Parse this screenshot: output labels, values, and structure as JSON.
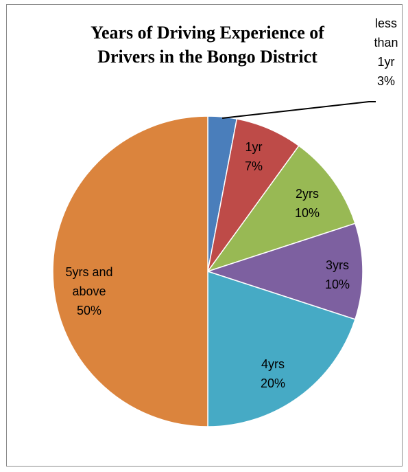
{
  "chart_data": {
    "type": "pie",
    "title_lines": [
      "Years of Driving Experience of",
      "Drivers in the Bongo District"
    ],
    "slices": [
      {
        "label_lines": [
          "less",
          "than",
          "1yr"
        ],
        "value": 3,
        "value_label": "3%",
        "color": "#4A7EBB"
      },
      {
        "label_lines": [
          "1yr"
        ],
        "value": 7,
        "value_label": "7%",
        "color": "#BE4B48"
      },
      {
        "label_lines": [
          "2yrs"
        ],
        "value": 10,
        "value_label": "10%",
        "color": "#98B954"
      },
      {
        "label_lines": [
          "3yrs"
        ],
        "value": 10,
        "value_label": "10%",
        "color": "#7D60A0"
      },
      {
        "label_lines": [
          "4yrs"
        ],
        "value": 20,
        "value_label": "20%",
        "color": "#46AAC5"
      },
      {
        "label_lines": [
          "5yrs and",
          "above"
        ],
        "value": 50,
        "value_label": "50%",
        "color": "#DB843D"
      }
    ],
    "start_angle": "12 o'clock",
    "direction": "clockwise"
  }
}
